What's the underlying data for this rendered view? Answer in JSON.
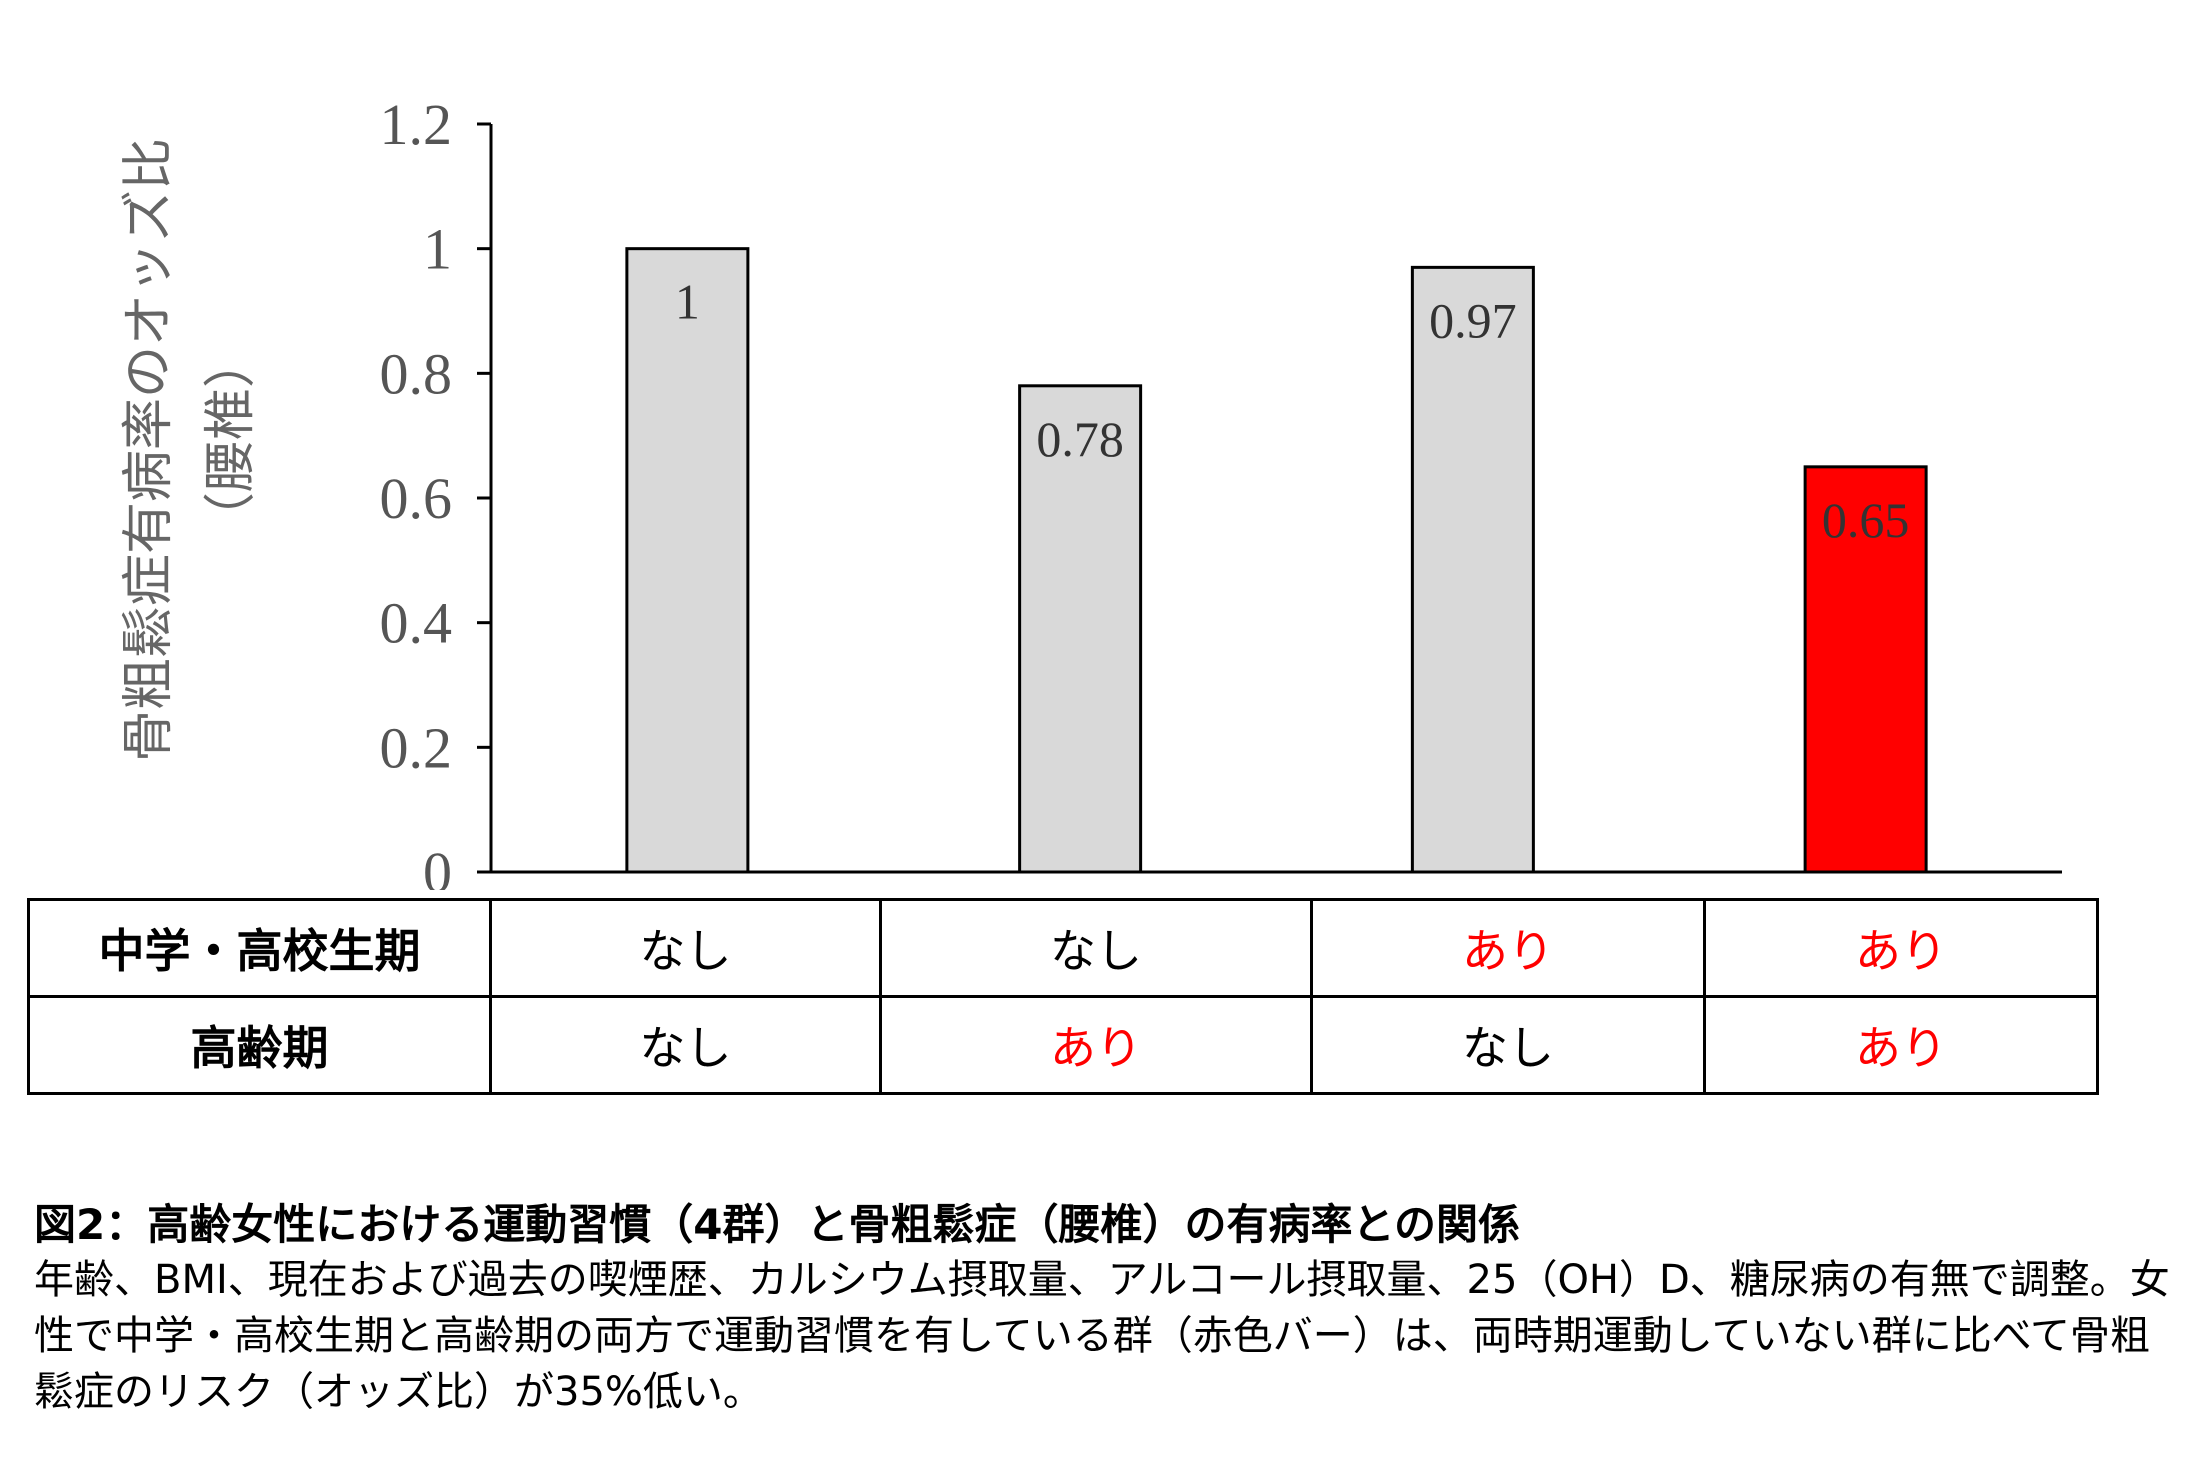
{
  "chart_data": {
    "type": "bar",
    "ylabel": "骨粗鬆症有病率のオッズ比",
    "ylabel_sub": "（腰椎）",
    "ylim": [
      0,
      1.2
    ],
    "yticks": [
      "0",
      "0.2",
      "0.4",
      "0.6",
      "0.8",
      "1",
      "1.2"
    ],
    "values": [
      1,
      0.78,
      0.97,
      0.65
    ],
    "value_labels": [
      "1",
      "0.78",
      "0.97",
      "0.65"
    ],
    "bar_colors": [
      "#d9d9d9",
      "#d9d9d9",
      "#d9d9d9",
      "#ff0000"
    ],
    "grid": false
  },
  "table": {
    "rows": [
      {
        "label": "中学・高校生期",
        "cells": [
          "なし",
          "なし",
          "あり",
          "あり"
        ]
      },
      {
        "label": "高齢期",
        "cells": [
          "なし",
          "あり",
          "なし",
          "あり"
        ]
      }
    ],
    "highlight_value": "あり",
    "highlight_color": "#ff0000"
  },
  "caption": {
    "title": "図2：高齢女性における運動習慣（4群）と骨粗鬆症（腰椎）の有病率との関係",
    "body": "年齢、BMI、現在および過去の喫煙歴、カルシウム摂取量、アルコール摂取量、25（OH）D、糖尿病の有無で調整。女性で中学・高校生期と高齢期の両方で運動習慣を有している群（赤色バー）は、両時期運動していない群に比べて骨粗鬆症のリスク（オッズ比）が35%低い。"
  }
}
